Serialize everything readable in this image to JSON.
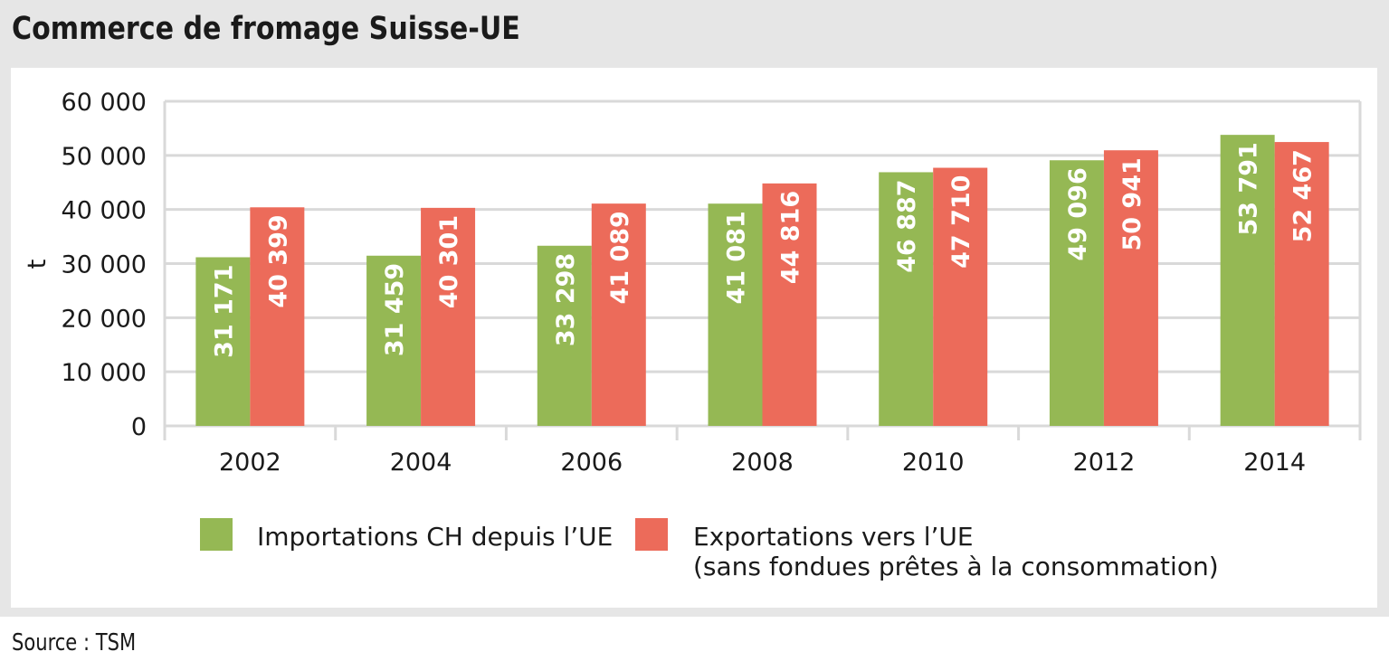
{
  "title": "Commerce de fromage Suisse-UE",
  "source": "Source : TSM",
  "chart_data": {
    "type": "bar",
    "title": "Commerce de fromage Suisse-UE",
    "ylabel": "t",
    "xlabel": "",
    "ylim": [
      0,
      60000
    ],
    "y_ticks": [
      "0",
      "10 000",
      "20 000",
      "30 000",
      "40 000",
      "50 000",
      "60 000"
    ],
    "categories": [
      "2002",
      "2004",
      "2006",
      "2008",
      "2010",
      "2012",
      "2014"
    ],
    "series": [
      {
        "name": "Importations CH depuis l’UE",
        "color": "#95b854",
        "values": [
          31171,
          31459,
          33298,
          41081,
          46887,
          49096,
          53791
        ],
        "labels": [
          "31 171",
          "31 459",
          "33 298",
          "41 081",
          "46 887",
          "49 096",
          "53 791"
        ]
      },
      {
        "name": "Exportations vers l’UE",
        "name_line2": "(sans fondues prêtes à la consommation)",
        "color": "#ec6b5a",
        "values": [
          40399,
          40301,
          41089,
          44816,
          47710,
          50941,
          52467
        ],
        "labels": [
          "40 399",
          "40 301",
          "41 089",
          "44 816",
          "47 710",
          "50 941",
          "52 467"
        ]
      }
    ],
    "grid": true,
    "legend_position": "bottom"
  }
}
